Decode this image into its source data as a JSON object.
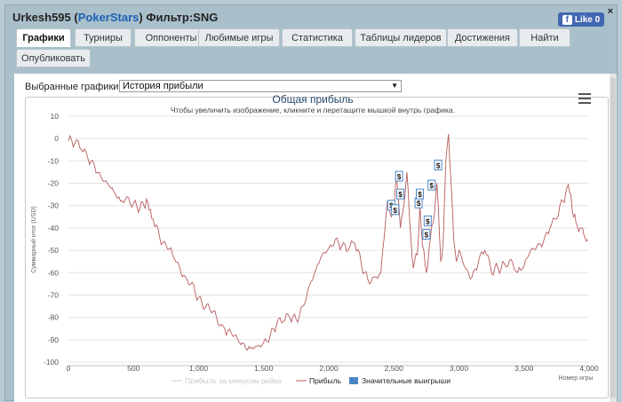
{
  "header": {
    "user": "Urkesh595",
    "network": "PokerStars",
    "filter": "Фильтр:SNG"
  },
  "like_button": {
    "label": "Like 0"
  },
  "tabs": [
    {
      "label": "Графики",
      "active": true
    },
    {
      "label": "Турниры"
    },
    {
      "label": "Оппоненты"
    },
    {
      "label": "Любимые игры"
    },
    {
      "label": "Статистика"
    },
    {
      "label": "Таблицы лидеров"
    },
    {
      "label": "Достижения"
    },
    {
      "label": "Найти"
    },
    {
      "label": "Опубликовать"
    }
  ],
  "selector": {
    "label": "Выбранные графики:",
    "value": "История прибыли"
  },
  "chart_data": {
    "type": "line",
    "title": "Общая прибыль",
    "subtitle": "Чтобы увеличить изображение, кликните и перетащите мышкой внутрь графика.",
    "ylabel": "Суммарный итог (USD)",
    "xlabel": "Номер игры",
    "ylim": [
      -100,
      10
    ],
    "xlim": [
      0,
      4000
    ],
    "yticks": [
      "10",
      "0",
      "-10",
      "-20",
      "-30",
      "-40",
      "-50",
      "-60",
      "-70",
      "-80",
      "-90",
      "-100"
    ],
    "xticks": [
      "0",
      "500",
      "1,000",
      "1,500",
      "2,000",
      "2,500",
      "3,000",
      "3,500",
      "4,000"
    ],
    "legend": [
      "Прибыль за минусом рейка",
      "Прибыль",
      "Значительные выигрыши"
    ],
    "series": [
      {
        "name": "Прибыль",
        "color": "#b85c5c",
        "x": [
          0,
          50,
          100,
          150,
          200,
          250,
          300,
          350,
          400,
          450,
          500,
          550,
          580,
          600,
          620,
          650,
          700,
          800,
          900,
          1000,
          1100,
          1200,
          1300,
          1400,
          1450,
          1500,
          1550,
          1600,
          1650,
          1700,
          1750,
          1800,
          1850,
          1900,
          1950,
          2000,
          2050,
          2100,
          2150,
          2200,
          2250,
          2300,
          2350,
          2400,
          2450,
          2480,
          2500,
          2520,
          2550,
          2580,
          2600,
          2620,
          2650,
          2680,
          2700,
          2720,
          2750,
          2780,
          2800,
          2830,
          2860,
          2880,
          2900,
          2920,
          2940,
          2960,
          2980,
          3000,
          3050,
          3100,
          3150,
          3200,
          3250,
          3300,
          3350,
          3400,
          3450,
          3500,
          3550,
          3600,
          3650,
          3700,
          3750,
          3800,
          3830,
          3860,
          3880,
          3900,
          3930,
          3960,
          3990
        ],
        "y": [
          -1,
          -2,
          -5,
          -9,
          -12,
          -17,
          -20,
          -24,
          -28,
          -26,
          -29,
          -31,
          -30,
          -27,
          -32,
          -36,
          -44,
          -52,
          -62,
          -71,
          -78,
          -85,
          -90,
          -94,
          -93,
          -91,
          -88,
          -83,
          -82,
          -80,
          -81,
          -75,
          -66,
          -59,
          -52,
          -49,
          -45,
          -48,
          -50,
          -47,
          -56,
          -63,
          -62,
          -60,
          -28,
          -35,
          -32,
          -15,
          -40,
          -28,
          -15,
          -35,
          -58,
          -52,
          -30,
          -48,
          -60,
          -45,
          -38,
          -20,
          -55,
          -45,
          -10,
          2,
          -20,
          -45,
          -55,
          -50,
          -58,
          -62,
          -55,
          -50,
          -60,
          -58,
          -56,
          -54,
          -60,
          -57,
          -50,
          -48,
          -46,
          -40,
          -36,
          -28,
          -22,
          -25,
          -35,
          -38,
          -40,
          -43,
          -45
        ]
      }
    ],
    "big_wins": [
      {
        "x": 2480,
        "y": -30
      },
      {
        "x": 2510,
        "y": -32
      },
      {
        "x": 2540,
        "y": -17
      },
      {
        "x": 2550,
        "y": -25
      },
      {
        "x": 2690,
        "y": -29
      },
      {
        "x": 2700,
        "y": -25
      },
      {
        "x": 2760,
        "y": -37
      },
      {
        "x": 2750,
        "y": -43
      },
      {
        "x": 2790,
        "y": -21
      },
      {
        "x": 2840,
        "y": -12
      }
    ]
  }
}
